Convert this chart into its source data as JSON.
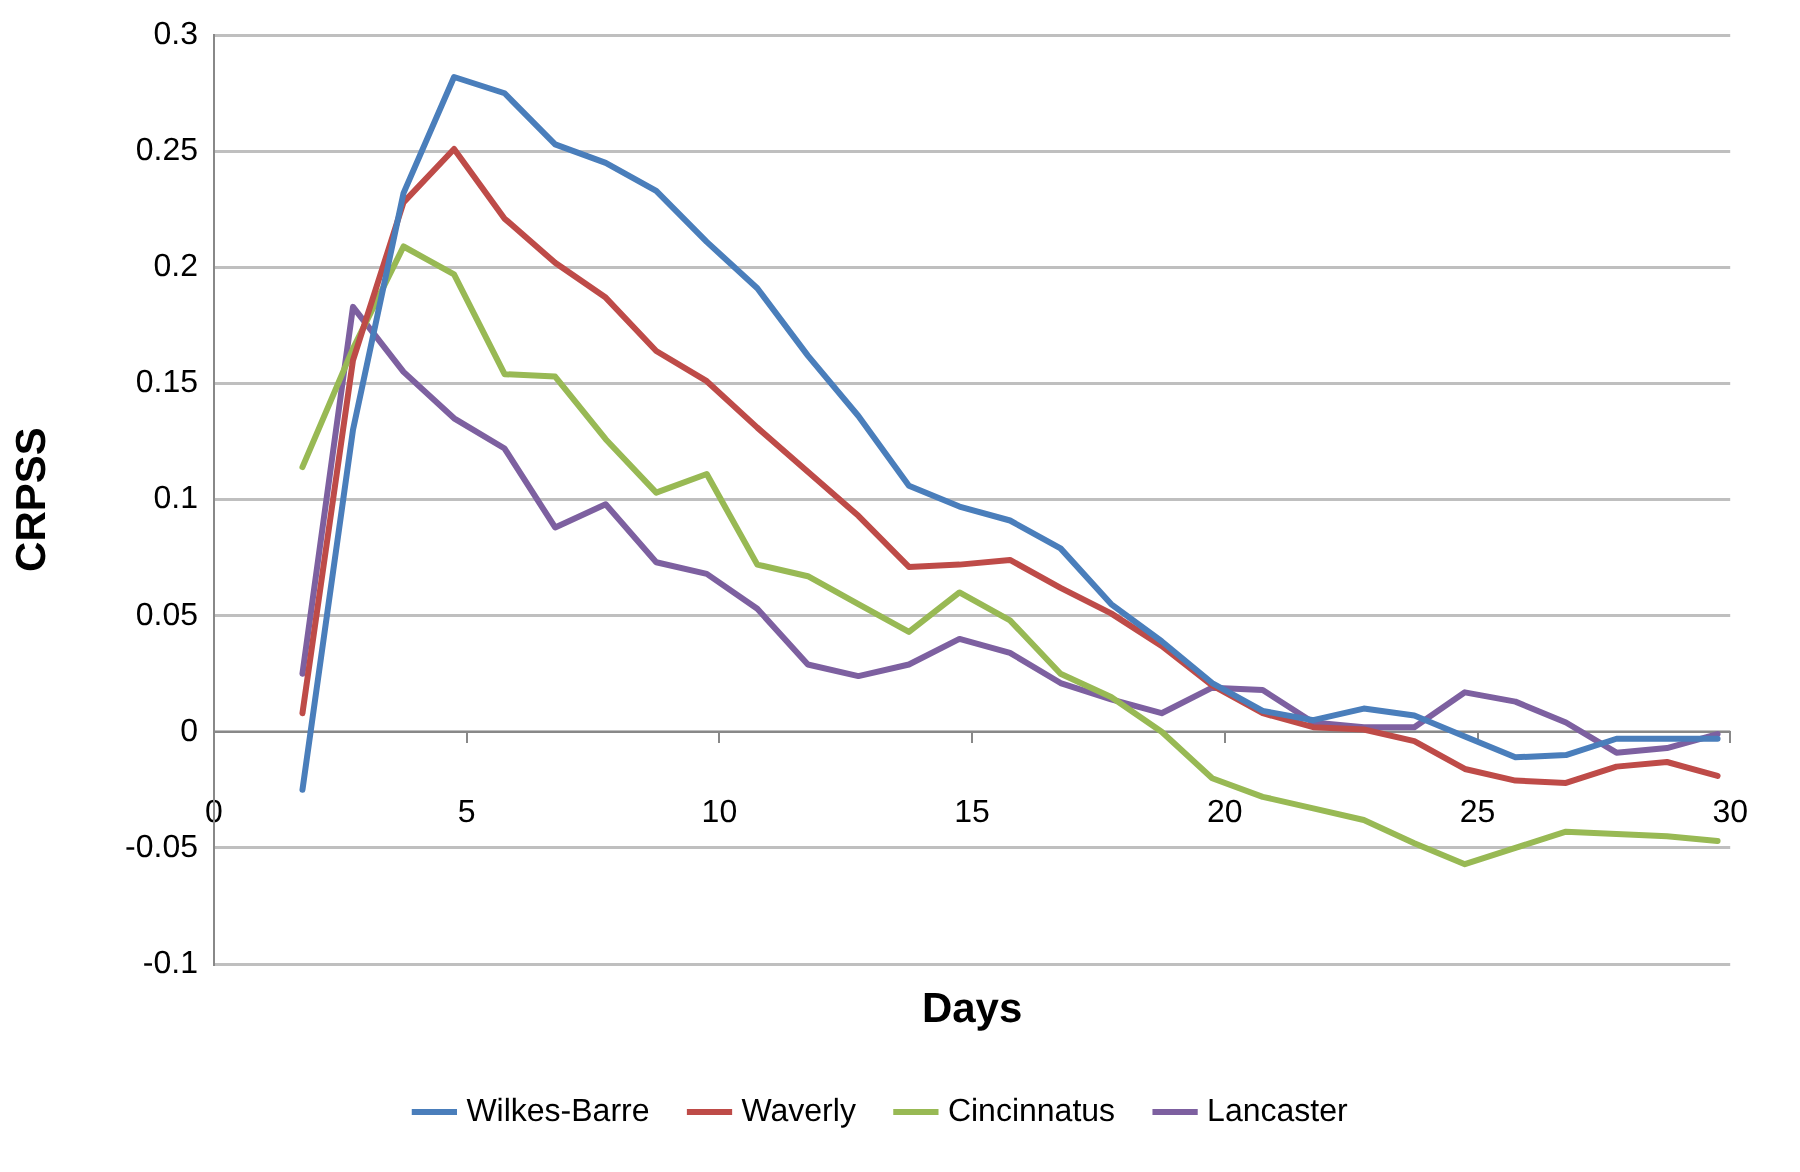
{
  "chart_data": {
    "type": "line",
    "xlabel": "Days",
    "ylabel": "CRPSS",
    "x": [
      1.75,
      2.75,
      3.75,
      4.75,
      5.75,
      6.75,
      7.75,
      8.75,
      9.75,
      10.75,
      11.75,
      12.75,
      13.75,
      14.75,
      15.75,
      16.75,
      17.75,
      18.75,
      19.75,
      20.75,
      21.75,
      22.75,
      23.75,
      24.75,
      25.75,
      26.75,
      27.75,
      28.75,
      29.75
    ],
    "series": [
      {
        "name": "Wilkes-Barre",
        "color": "#4a7ebb",
        "values": [
          -0.025,
          0.13,
          0.232,
          0.282,
          0.275,
          0.253,
          0.245,
          0.233,
          0.211,
          0.191,
          0.162,
          0.136,
          0.106,
          0.097,
          0.091,
          0.079,
          0.055,
          0.039,
          0.021,
          0.009,
          0.005,
          0.01,
          0.007,
          -0.002,
          -0.011,
          -0.01,
          -0.003,
          -0.003,
          -0.003
        ]
      },
      {
        "name": "Waverly",
        "color": "#be4b48",
        "values": [
          0.008,
          0.16,
          0.228,
          0.251,
          0.221,
          0.202,
          0.187,
          0.164,
          0.151,
          0.131,
          0.112,
          0.093,
          0.071,
          0.072,
          0.074,
          0.062,
          0.051,
          0.037,
          0.02,
          0.008,
          0.002,
          0.001,
          -0.004,
          -0.016,
          -0.021,
          -0.022,
          -0.015,
          -0.013,
          -0.019
        ]
      },
      {
        "name": "Cincinnatus",
        "color": "#98b954",
        "values": [
          0.114,
          0.165,
          0.209,
          0.197,
          0.154,
          0.153,
          0.126,
          0.103,
          0.111,
          0.072,
          0.067,
          0.055,
          0.043,
          0.06,
          0.048,
          0.025,
          0.015,
          0.0,
          -0.02,
          -0.028,
          -0.033,
          -0.038,
          -0.048,
          -0.057,
          -0.05,
          -0.043,
          -0.044,
          -0.045,
          -0.047
        ]
      },
      {
        "name": "Lancaster",
        "color": "#7d60a0",
        "values": [
          0.025,
          0.183,
          0.155,
          0.135,
          0.122,
          0.088,
          0.098,
          0.073,
          0.068,
          0.053,
          0.029,
          0.024,
          0.029,
          0.04,
          0.034,
          0.021,
          0.014,
          0.008,
          0.019,
          0.018,
          0.004,
          0.002,
          0.002,
          0.017,
          0.013,
          0.004,
          -0.009,
          -0.007,
          -0.001
        ]
      }
    ],
    "xlim": [
      0,
      30
    ],
    "xticks": [
      0,
      5,
      10,
      15,
      20,
      25,
      30
    ],
    "ylim": [
      -0.1,
      0.3
    ],
    "yticks": [
      -0.1,
      -0.05,
      0,
      0.05,
      0.1,
      0.15,
      0.2,
      0.25,
      0.3
    ],
    "grid": "y",
    "legend": "bottom",
    "marker": "none",
    "line_style": "solid"
  }
}
